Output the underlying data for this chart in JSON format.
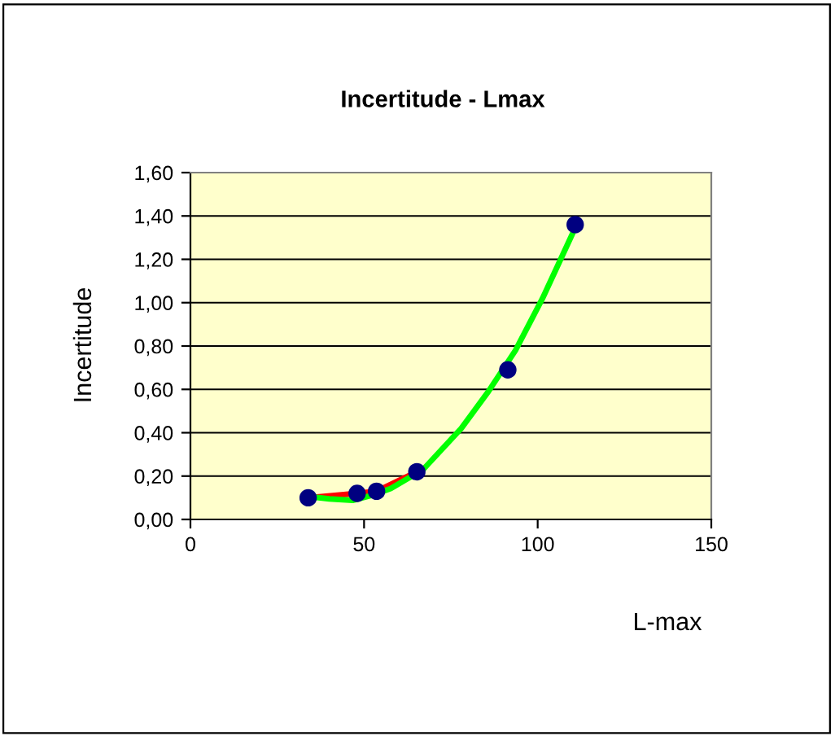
{
  "chart_data": {
    "type": "scatter",
    "title": "Incertitude - Lmax",
    "xlabel": "L-max",
    "ylabel": "Incertitude",
    "series": [
      {
        "type": "line",
        "color": "#ff0000",
        "x": [
          33.9,
          48,
          53.6,
          65.2
        ],
        "values": [
          0.1,
          0.12,
          0.13,
          0.22
        ],
        "marker": "none"
      },
      {
        "type": "line",
        "color": "#00ff00",
        "x": [
          34.2,
          40,
          46.7,
          52,
          57.7,
          67,
          78,
          85.8,
          93.6,
          101.4,
          110.8
        ],
        "values": [
          0.105,
          0.095,
          0.088,
          0.11,
          0.143,
          0.23,
          0.42,
          0.59,
          0.78,
          1.02,
          1.345
        ],
        "marker": "none"
      },
      {
        "color": "#000080",
        "x": [
          33.9,
          48,
          53.6,
          65.2,
          91.4,
          110.8
        ],
        "values": [
          0.1,
          0.12,
          0.13,
          0.22,
          0.69,
          1.36
        ],
        "marker": "circle"
      }
    ],
    "xlim": [
      0,
      150
    ],
    "xticks": [
      0,
      50,
      100,
      150
    ],
    "ylim": [
      0,
      1.6
    ],
    "yticks": [
      {
        "value": 0,
        "label": "0,00"
      },
      {
        "value": 0.2,
        "label": "0,20"
      },
      {
        "value": 0.4,
        "label": "0,40"
      },
      {
        "value": 0.6,
        "label": "0,60"
      },
      {
        "value": 0.8,
        "label": "0,80"
      },
      {
        "value": 1.0,
        "label": "1,00"
      },
      {
        "value": 1.2,
        "label": "1,20"
      },
      {
        "value": 1.4,
        "label": "1,40"
      },
      {
        "value": 1.6,
        "label": "1,60"
      }
    ],
    "grid": "y",
    "legend": false
  }
}
